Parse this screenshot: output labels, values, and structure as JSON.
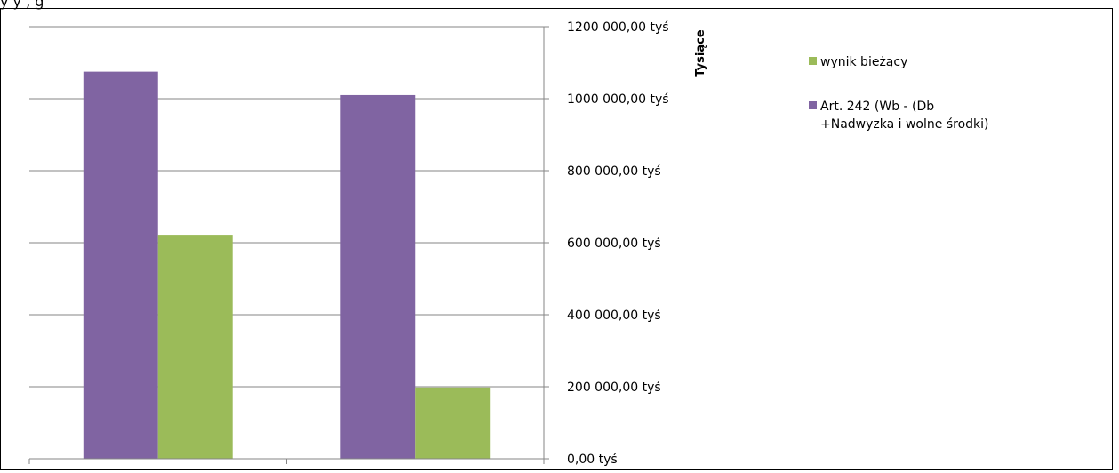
{
  "header_text": "y              y              ,                                                                                     g",
  "chart_data": {
    "type": "bar",
    "categories": [
      "",
      ""
    ],
    "series": [
      {
        "name": "Art. 242 (Wb -  (Db +Nadwyzka i wolne środki)",
        "color": "#8064a2",
        "values": [
          1075000,
          1010000
        ]
      },
      {
        "name": "wynik bieżący",
        "color": "#9bbb59",
        "values": [
          622000,
          198000
        ]
      }
    ],
    "yaxis": {
      "title": "Tysiące",
      "position": "right",
      "ylim": [
        0,
        1200000
      ],
      "ticks": [
        0,
        200000,
        400000,
        600000,
        800000,
        1000000,
        1200000
      ],
      "tick_labels": [
        "0,00 tyś",
        "200 000,00 tyś",
        "400 000,00 tyś",
        "600 000,00 tyś",
        "800 000,00 tyś",
        "1000 000,00 tyś",
        "1200 000,00 tyś"
      ]
    },
    "grid": true,
    "legend_placement": "top-right",
    "legend": [
      {
        "label": "wynik bieżący",
        "color": "#9bbb59"
      },
      {
        "label": "Art. 242 (Wb -  (Db\n+Nadwyzka i wolne środki)",
        "color": "#8064a2"
      }
    ]
  }
}
